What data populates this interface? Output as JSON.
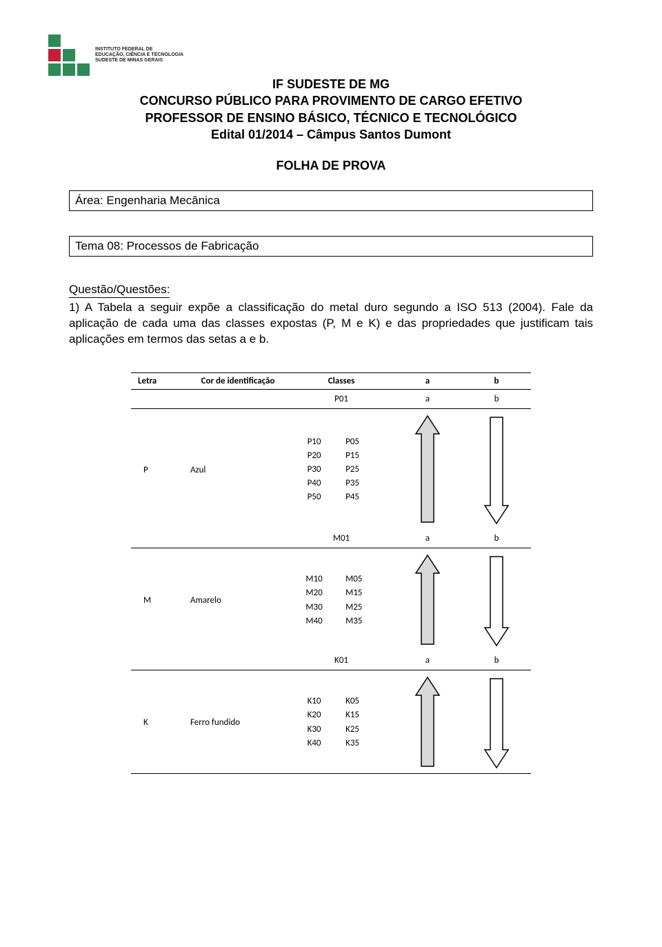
{
  "logo": {
    "text_line1": "INSTITUTO FEDERAL DE",
    "text_line2": "EDUCAÇÃO, CIÊNCIA E TECNOLOGIA",
    "text_line3": "SUDESTE DE MINAS GERAIS",
    "colors": {
      "red": "#c41e3a",
      "green": "#2e8b57"
    }
  },
  "title": {
    "line1": "IF SUDESTE DE MG",
    "line2": "CONCURSO PÚBLICO PARA PROVIMENTO DE CARGO EFETIVO",
    "line3": "PROFESSOR DE ENSINO BÁSICO, TÉCNICO E TECNOLÓGICO",
    "line4": "Edital 01/2014 – Câmpus Santos Dumont"
  },
  "folha": "FOLHA DE PROVA",
  "area_box": "Área: Engenharia Mecânica",
  "tema_box": "Tema 08: Processos de Fabricação",
  "questao": {
    "title": "Questão/Questões:",
    "body": "1) A Tabela a seguir expõe a classificação do metal duro segundo a ISO 513 (2004). Fale da aplicação de cada uma das classes expostas (P, M e K) e das propriedades que justificam tais aplicações em termos das setas a e b."
  },
  "table": {
    "headers": [
      "Letra",
      "Cor de identificação",
      "Classes",
      "a",
      "b"
    ],
    "first_row": {
      "class": "P01",
      "a": "a",
      "b": "b"
    },
    "groups": [
      {
        "letter": "P",
        "color_name": "Azul",
        "left_classes": [
          "P10",
          "P20",
          "P30",
          "P40",
          "P50"
        ],
        "right_classes": [
          "P05",
          "P15",
          "P25",
          "P35",
          "P45"
        ],
        "header_row": {
          "class": "M01",
          "a": "a",
          "b": "b"
        },
        "arrow_height": 160,
        "arrow_a_fill": "#d9d9d9",
        "arrow_b_fill": "#ffffff",
        "arrow_stroke": "#000000"
      },
      {
        "letter": "M",
        "color_name": "Amarelo",
        "left_classes": [
          "M10",
          "M20",
          "M30",
          "M40"
        ],
        "right_classes": [
          "M05",
          "M15",
          "M25",
          "M35"
        ],
        "header_row": {
          "class": "K01",
          "a": "a",
          "b": "b"
        },
        "arrow_height": 135,
        "arrow_a_fill": "#d9d9d9",
        "arrow_b_fill": "#ffffff",
        "arrow_stroke": "#000000"
      },
      {
        "letter": "K",
        "color_name": "Ferro fundido",
        "left_classes": [
          "K10",
          "K20",
          "K30",
          "K40"
        ],
        "right_classes": [
          "K05",
          "K15",
          "K25",
          "K35"
        ],
        "header_row": null,
        "arrow_height": 135,
        "arrow_a_fill": "#d9d9d9",
        "arrow_b_fill": "#ffffff",
        "arrow_stroke": "#000000"
      }
    ]
  }
}
